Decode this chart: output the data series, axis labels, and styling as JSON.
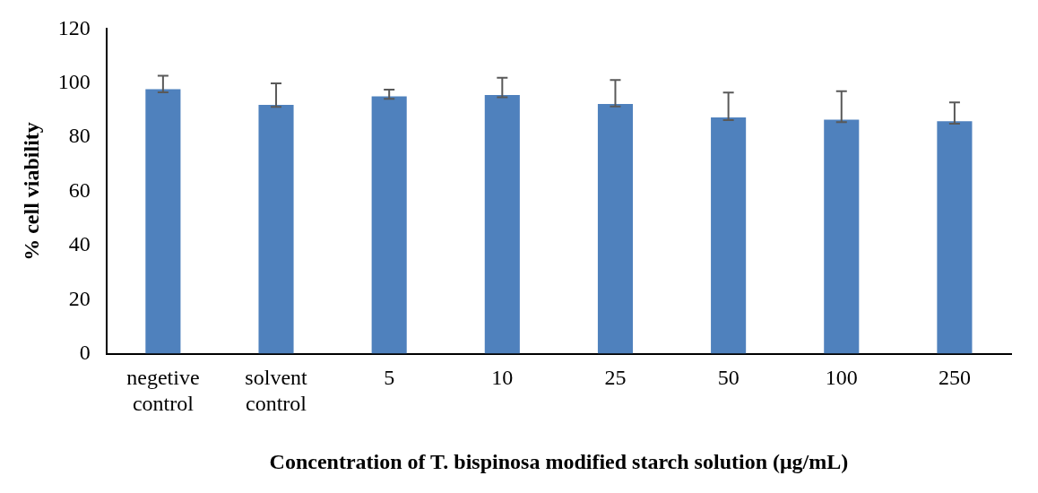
{
  "chart_data": {
    "type": "bar",
    "xlabel": "Concentration of T. bispinosa modified starch solution (μg/mL)",
    "ylabel": "% cell viability",
    "categories": [
      "negetive control",
      "solvent control",
      "5",
      "10",
      "25",
      "50",
      "100",
      "250"
    ],
    "values": [
      97.8,
      92.0,
      95.1,
      95.6,
      92.3,
      87.3,
      86.5,
      85.9
    ],
    "errors": [
      [
        96.6,
        102.7
      ],
      [
        91.2,
        99.9
      ],
      [
        94.2,
        97.6
      ],
      [
        94.8,
        102.0
      ],
      [
        91.4,
        101.2
      ],
      [
        86.3,
        96.5
      ],
      [
        85.6,
        97.0
      ],
      [
        85.0,
        92.9
      ]
    ],
    "color": "#4f81bd",
    "ylim": [
      0,
      120
    ],
    "yticks": [
      0,
      20,
      40,
      60,
      80,
      100,
      120
    ],
    "grid": false,
    "legend": false
  }
}
